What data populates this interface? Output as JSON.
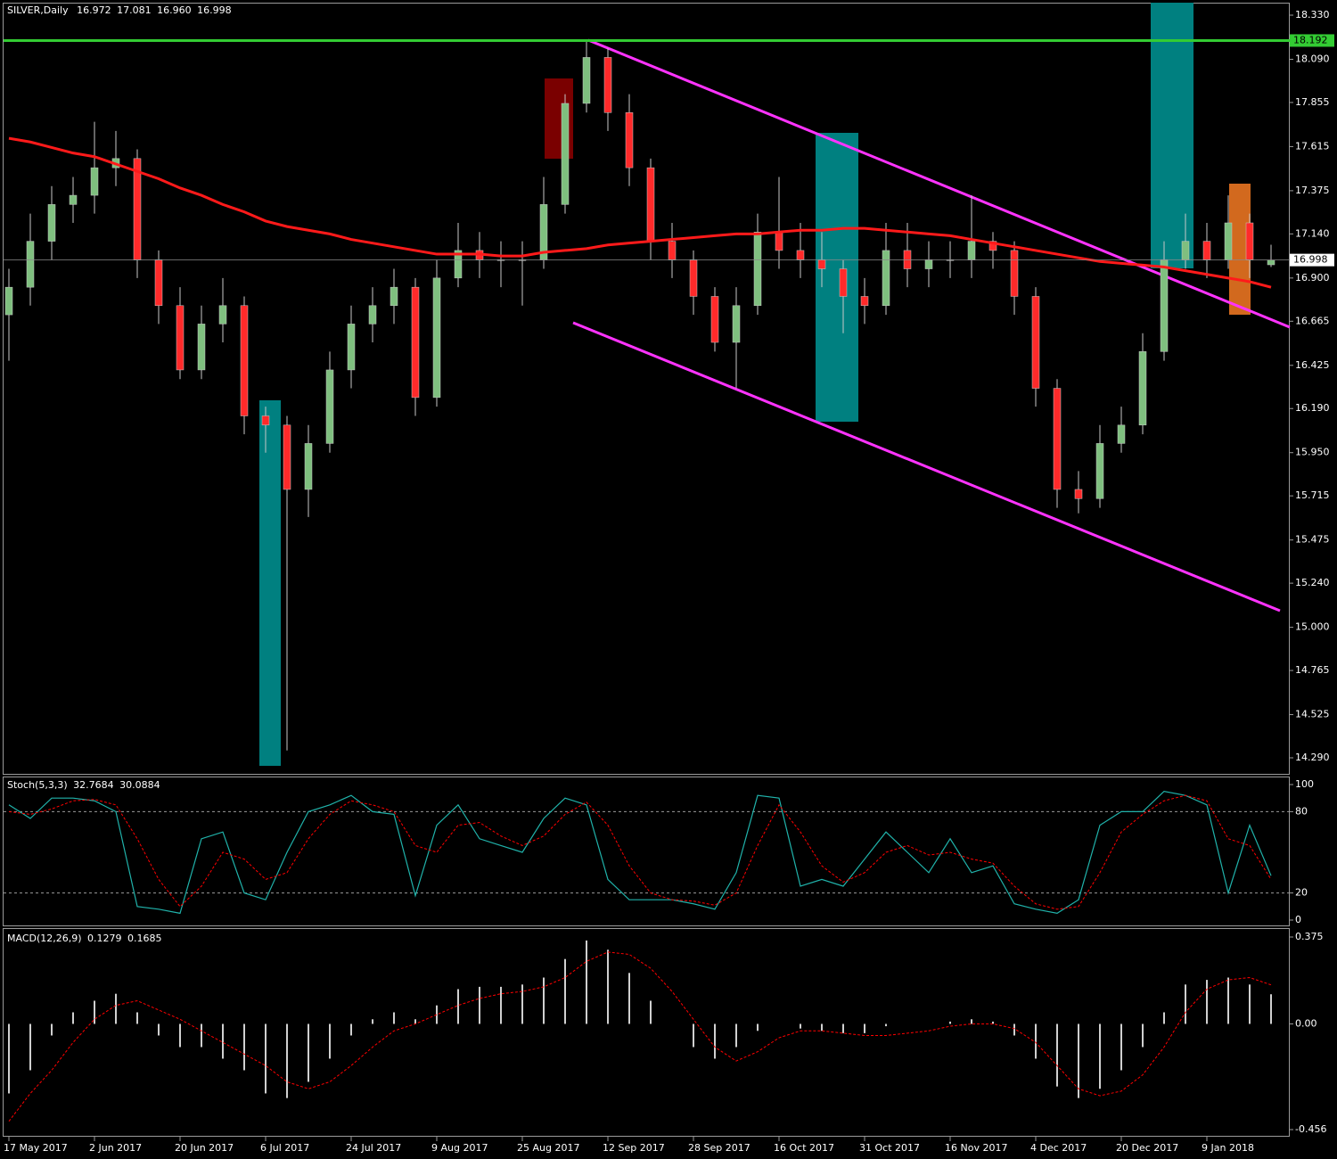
{
  "chart_data": [
    {
      "type": "candlestick",
      "title": "SILVER,Daily",
      "header_labels": [
        "16.972",
        "17.081",
        "16.960",
        "16.998"
      ],
      "categories": [
        "17 May 2017",
        null,
        null,
        null,
        "2 Jun 2017",
        null,
        null,
        null,
        "20 Jun 2017",
        null,
        null,
        null,
        "6 Jul 2017",
        null,
        null,
        null,
        "24 Jul 2017",
        null,
        null,
        null,
        "9 Aug 2017",
        null,
        null,
        null,
        "25 Aug 2017",
        null,
        null,
        null,
        "12 Sep 2017",
        null,
        null,
        null,
        "28 Sep 2017",
        null,
        null,
        null,
        "16 Oct 2017",
        null,
        null,
        null,
        "31 Oct 2017",
        null,
        null,
        null,
        "16 Nov 2017",
        null,
        null,
        null,
        "4 Dec 2017",
        null,
        null,
        null,
        "20 Dec 2017",
        null,
        null,
        null,
        "9 Jan 2018",
        null,
        null,
        null
      ],
      "open": [
        16.7,
        16.85,
        17.1,
        17.3,
        17.35,
        17.5,
        17.55,
        17.0,
        16.75,
        16.4,
        16.65,
        16.75,
        16.15,
        16.1,
        15.75,
        16.0,
        16.4,
        16.65,
        16.75,
        16.85,
        16.25,
        16.9,
        17.05,
        17.0,
        17.0,
        17.0,
        17.3,
        17.85,
        18.1,
        17.8,
        17.5,
        17.1,
        17.0,
        16.8,
        16.55,
        16.75,
        17.15,
        17.05,
        17.0,
        16.95,
        16.8,
        16.75,
        17.05,
        16.95,
        17.0,
        17.0,
        17.1,
        17.05,
        16.8,
        16.3,
        15.75,
        15.7,
        16.0,
        16.1,
        16.5,
        17.0,
        17.1,
        17.0,
        17.2,
        16.972
      ],
      "high": [
        16.95,
        17.25,
        17.4,
        17.45,
        17.75,
        17.7,
        17.6,
        17.05,
        16.85,
        16.75,
        16.9,
        16.8,
        16.2,
        16.15,
        16.1,
        16.5,
        16.75,
        16.85,
        16.95,
        16.9,
        17.0,
        17.2,
        17.15,
        17.1,
        17.1,
        17.45,
        17.9,
        18.19,
        18.15,
        17.9,
        17.55,
        17.2,
        17.05,
        16.85,
        16.85,
        17.25,
        17.45,
        17.2,
        17.15,
        17.0,
        16.9,
        17.2,
        17.2,
        17.1,
        17.1,
        17.35,
        17.15,
        17.1,
        16.85,
        16.35,
        15.85,
        16.1,
        16.2,
        16.6,
        17.1,
        17.25,
        17.2,
        17.35,
        17.25,
        17.081
      ],
      "low": [
        16.45,
        16.75,
        17.0,
        17.2,
        17.25,
        17.4,
        16.9,
        16.65,
        16.35,
        16.35,
        16.55,
        16.05,
        15.95,
        14.33,
        15.6,
        15.95,
        16.3,
        16.55,
        16.65,
        16.15,
        16.2,
        16.85,
        16.9,
        16.85,
        16.75,
        16.95,
        17.25,
        17.8,
        17.7,
        17.4,
        17.0,
        16.9,
        16.7,
        16.5,
        16.3,
        16.7,
        16.95,
        16.9,
        16.85,
        16.6,
        16.65,
        16.7,
        16.85,
        16.85,
        16.9,
        16.9,
        16.95,
        16.7,
        16.2,
        15.65,
        15.62,
        15.65,
        15.95,
        16.05,
        16.45,
        16.95,
        16.9,
        16.95,
        16.9,
        16.96
      ],
      "close": [
        16.85,
        17.1,
        17.3,
        17.35,
        17.5,
        17.55,
        17.0,
        16.75,
        16.4,
        16.65,
        16.75,
        16.15,
        16.1,
        15.75,
        16.0,
        16.4,
        16.65,
        16.75,
        16.85,
        16.25,
        16.9,
        17.05,
        17.0,
        17.0,
        17.0,
        17.3,
        17.85,
        18.1,
        17.8,
        17.5,
        17.1,
        17.0,
        16.8,
        16.55,
        16.75,
        17.15,
        17.05,
        17.0,
        16.95,
        16.8,
        16.75,
        17.05,
        16.95,
        17.0,
        17.0,
        17.1,
        17.05,
        16.8,
        16.3,
        15.75,
        15.7,
        16.0,
        16.1,
        16.5,
        17.0,
        17.1,
        17.0,
        17.2,
        17.0,
        16.998
      ],
      "up_color": "#7fbf7f",
      "down_color": "#ff2a2a",
      "wick_color": "#c8c8c8",
      "moving_average": {
        "color": "#ff1a1a",
        "values": [
          17.66,
          17.64,
          17.61,
          17.58,
          17.56,
          17.52,
          17.48,
          17.44,
          17.39,
          17.35,
          17.3,
          17.26,
          17.21,
          17.18,
          17.16,
          17.14,
          17.11,
          17.09,
          17.07,
          17.05,
          17.03,
          17.03,
          17.03,
          17.02,
          17.02,
          17.04,
          17.05,
          17.06,
          17.08,
          17.09,
          17.1,
          17.11,
          17.12,
          17.13,
          17.14,
          17.14,
          17.15,
          17.16,
          17.16,
          17.17,
          17.17,
          17.16,
          17.15,
          17.14,
          17.13,
          17.11,
          17.09,
          17.07,
          17.05,
          17.03,
          17.01,
          16.99,
          16.98,
          16.97,
          16.96,
          16.94,
          16.92,
          16.9,
          16.88,
          16.85
        ]
      },
      "hline": {
        "value": 18.192,
        "color": "#33cc33"
      },
      "ylim": [
        14.29,
        18.33
      ],
      "yticks": [
        {
          "value": 18.33,
          "label": "18.330"
        },
        {
          "value": 18.09,
          "label": "18.090"
        },
        17.855,
        17.615,
        17.375,
        {
          "value": 17.14,
          "label": "17.140"
        },
        {
          "value": 16.9,
          "label": "16.900"
        },
        16.665,
        16.425,
        {
          "value": 16.19,
          "label": "16.190"
        },
        {
          "value": 15.95,
          "label": "15.950"
        },
        15.715,
        15.475,
        {
          "value": 15.24,
          "label": "15.240"
        },
        {
          "value": 15,
          "label": "15.000"
        },
        14.765,
        14.525,
        {
          "value": 14.29,
          "label": "14.290"
        }
      ]
    },
    {
      "type": "line",
      "title": "Stoch(5,3,3)",
      "grid": true,
      "ylim": [
        0,
        100
      ],
      "yticks": [
        100,
        80,
        20,
        0
      ],
      "series": [
        {
          "color": "#20b2aa",
          "dash": false,
          "values": [
            85,
            75,
            90,
            90,
            88,
            80,
            10,
            8,
            5,
            60,
            65,
            20,
            15,
            50,
            80,
            85,
            92,
            80,
            78,
            18,
            70,
            85,
            60,
            55,
            50,
            75,
            90,
            85,
            30,
            15,
            15,
            15,
            12,
            8,
            35,
            92,
            90,
            25,
            30,
            25,
            45,
            65,
            50,
            35,
            60,
            35,
            40,
            12,
            8,
            5,
            15,
            70,
            80,
            80,
            95,
            92,
            85,
            20,
            70,
            32.7684
          ]
        },
        {
          "color": "#ff0000",
          "dash": true,
          "values": [
            80,
            78,
            82,
            88,
            89,
            85,
            60,
            30,
            10,
            25,
            50,
            45,
            30,
            35,
            60,
            78,
            88,
            85,
            80,
            55,
            50,
            70,
            72,
            62,
            55,
            62,
            78,
            87,
            70,
            40,
            20,
            15,
            14,
            11,
            20,
            55,
            85,
            65,
            40,
            28,
            35,
            50,
            55,
            48,
            50,
            45,
            42,
            25,
            12,
            8,
            10,
            35,
            65,
            78,
            88,
            92,
            88,
            60,
            55,
            30.0884
          ]
        }
      ]
    },
    {
      "type": "macd",
      "title": "MACD(12,26,9)",
      "grid": false,
      "ylim": [
        -0.456,
        0.375
      ],
      "yticks": [
        0.375,
        {
          "value": 0,
          "label": "0.00"
        },
        -0.456
      ],
      "series": [
        {
          "color": "#d0d0d0",
          "dash": false,
          "values": [
            -0.3,
            -0.2,
            -0.05,
            0.05,
            0.1,
            0.13,
            0.05,
            -0.05,
            -0.1,
            -0.1,
            -0.15,
            -0.2,
            -0.3,
            -0.32,
            -0.25,
            -0.15,
            -0.05,
            0.02,
            0.05,
            0.02,
            0.08,
            0.15,
            0.16,
            0.16,
            0.17,
            0.2,
            0.28,
            0.36,
            0.32,
            0.22,
            0.1,
            0.0,
            -0.1,
            -0.15,
            -0.1,
            -0.03,
            0.0,
            -0.02,
            -0.03,
            -0.04,
            -0.04,
            -0.01,
            0.0,
            0.0,
            0.01,
            0.02,
            0.01,
            -0.05,
            -0.15,
            -0.27,
            -0.32,
            -0.28,
            -0.2,
            -0.1,
            0.05,
            0.17,
            0.19,
            0.2,
            0.17,
            0.1279
          ]
        },
        {
          "color": "#ff0000",
          "dash": true,
          "values": [
            -0.42,
            -0.3,
            -0.2,
            -0.08,
            0.02,
            0.08,
            0.1,
            0.06,
            0.02,
            -0.03,
            -0.08,
            -0.13,
            -0.18,
            -0.25,
            -0.28,
            -0.25,
            -0.18,
            -0.1,
            -0.03,
            0.0,
            0.04,
            0.08,
            0.11,
            0.13,
            0.14,
            0.16,
            0.2,
            0.27,
            0.31,
            0.3,
            0.24,
            0.14,
            0.02,
            -0.1,
            -0.16,
            -0.12,
            -0.06,
            -0.03,
            -0.03,
            -0.04,
            -0.05,
            -0.05,
            -0.04,
            -0.03,
            -0.01,
            0.0,
            0.0,
            -0.02,
            -0.08,
            -0.18,
            -0.28,
            -0.31,
            -0.29,
            -0.22,
            -0.1,
            0.05,
            0.15,
            0.19,
            0.2,
            0.1685
          ]
        }
      ]
    }
  ]
}
